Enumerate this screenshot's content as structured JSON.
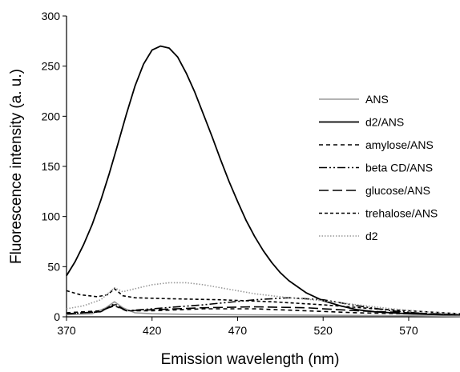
{
  "chart_data": {
    "type": "line",
    "title": "",
    "xlabel": "Emission wavelength (nm)",
    "ylabel": "Fluorescence intensity (a. u.)",
    "xlim": [
      370,
      600
    ],
    "ylim": [
      0,
      300
    ],
    "xticks": [
      370,
      420,
      470,
      520,
      570
    ],
    "yticks": [
      0,
      50,
      100,
      150,
      200,
      250,
      300
    ],
    "grid": false,
    "legend_position": "right",
    "series": [
      {
        "name": "ANS",
        "color": "#9a9a9a",
        "dash": "solid",
        "points": [
          [
            370,
            2
          ],
          [
            385,
            3
          ],
          [
            393,
            9
          ],
          [
            398,
            15
          ],
          [
            403,
            9
          ],
          [
            410,
            4
          ],
          [
            420,
            3
          ],
          [
            440,
            2.5
          ],
          [
            470,
            2
          ],
          [
            520,
            1.5
          ],
          [
            570,
            1
          ],
          [
            600,
            0.5
          ]
        ]
      },
      {
        "name": "d2/ANS",
        "color": "#000000",
        "dash": "solid",
        "points": [
          [
            370,
            41
          ],
          [
            375,
            55
          ],
          [
            380,
            72
          ],
          [
            385,
            92
          ],
          [
            390,
            116
          ],
          [
            395,
            143
          ],
          [
            400,
            172
          ],
          [
            405,
            202
          ],
          [
            410,
            230
          ],
          [
            415,
            252
          ],
          [
            420,
            266
          ],
          [
            425,
            270
          ],
          [
            430,
            268
          ],
          [
            435,
            259
          ],
          [
            440,
            243
          ],
          [
            445,
            224
          ],
          [
            450,
            202
          ],
          [
            455,
            180
          ],
          [
            460,
            157
          ],
          [
            465,
            135
          ],
          [
            470,
            115
          ],
          [
            475,
            96
          ],
          [
            480,
            80
          ],
          [
            485,
            66
          ],
          [
            490,
            54
          ],
          [
            495,
            44
          ],
          [
            500,
            36
          ],
          [
            510,
            24
          ],
          [
            520,
            16
          ],
          [
            530,
            11
          ],
          [
            540,
            7
          ],
          [
            550,
            5
          ],
          [
            560,
            4
          ],
          [
            570,
            3
          ],
          [
            580,
            2.5
          ],
          [
            590,
            2
          ],
          [
            600,
            2
          ]
        ]
      },
      {
        "name": "amylose/ANS",
        "color": "#000000",
        "dash": "5,4",
        "points": [
          [
            370,
            4
          ],
          [
            390,
            6
          ],
          [
            398,
            11
          ],
          [
            405,
            6
          ],
          [
            420,
            6
          ],
          [
            450,
            8
          ],
          [
            480,
            8
          ],
          [
            510,
            6
          ],
          [
            540,
            4
          ],
          [
            570,
            3
          ],
          [
            600,
            2
          ]
        ]
      },
      {
        "name": "beta CD/ANS",
        "color": "#000000",
        "dash": "10,3,2,3,2,3",
        "points": [
          [
            370,
            3
          ],
          [
            390,
            5
          ],
          [
            398,
            13
          ],
          [
            405,
            6
          ],
          [
            420,
            8
          ],
          [
            450,
            12
          ],
          [
            480,
            17
          ],
          [
            500,
            19
          ],
          [
            520,
            17
          ],
          [
            540,
            11
          ],
          [
            560,
            6
          ],
          [
            580,
            3
          ],
          [
            600,
            2
          ]
        ]
      },
      {
        "name": "glucose/ANS",
        "color": "#000000",
        "dash": "12,5",
        "points": [
          [
            370,
            3
          ],
          [
            390,
            5
          ],
          [
            398,
            12
          ],
          [
            405,
            6
          ],
          [
            420,
            7
          ],
          [
            450,
            9
          ],
          [
            480,
            10
          ],
          [
            510,
            9
          ],
          [
            540,
            6
          ],
          [
            570,
            4
          ],
          [
            600,
            2
          ]
        ]
      },
      {
        "name": "trehalose/ANS",
        "color": "#000000",
        "dash": "4,3",
        "points": [
          [
            370,
            26
          ],
          [
            378,
            22
          ],
          [
            388,
            20
          ],
          [
            394,
            22
          ],
          [
            398,
            28
          ],
          [
            403,
            21
          ],
          [
            410,
            19
          ],
          [
            430,
            18
          ],
          [
            460,
            17
          ],
          [
            490,
            15
          ],
          [
            520,
            12
          ],
          [
            550,
            8
          ],
          [
            580,
            5
          ],
          [
            600,
            3
          ]
        ]
      },
      {
        "name": "d2",
        "color": "#9a9a9a",
        "dash": "1.5,2",
        "points": [
          [
            370,
            8
          ],
          [
            380,
            11
          ],
          [
            390,
            17
          ],
          [
            398,
            29
          ],
          [
            403,
            25
          ],
          [
            410,
            28
          ],
          [
            420,
            32
          ],
          [
            430,
            34
          ],
          [
            440,
            34
          ],
          [
            450,
            32
          ],
          [
            460,
            29
          ],
          [
            470,
            26
          ],
          [
            480,
            23
          ],
          [
            490,
            21
          ],
          [
            500,
            19
          ],
          [
            520,
            16
          ],
          [
            540,
            12
          ],
          [
            560,
            8
          ],
          [
            580,
            5
          ],
          [
            600,
            3
          ]
        ]
      }
    ]
  }
}
